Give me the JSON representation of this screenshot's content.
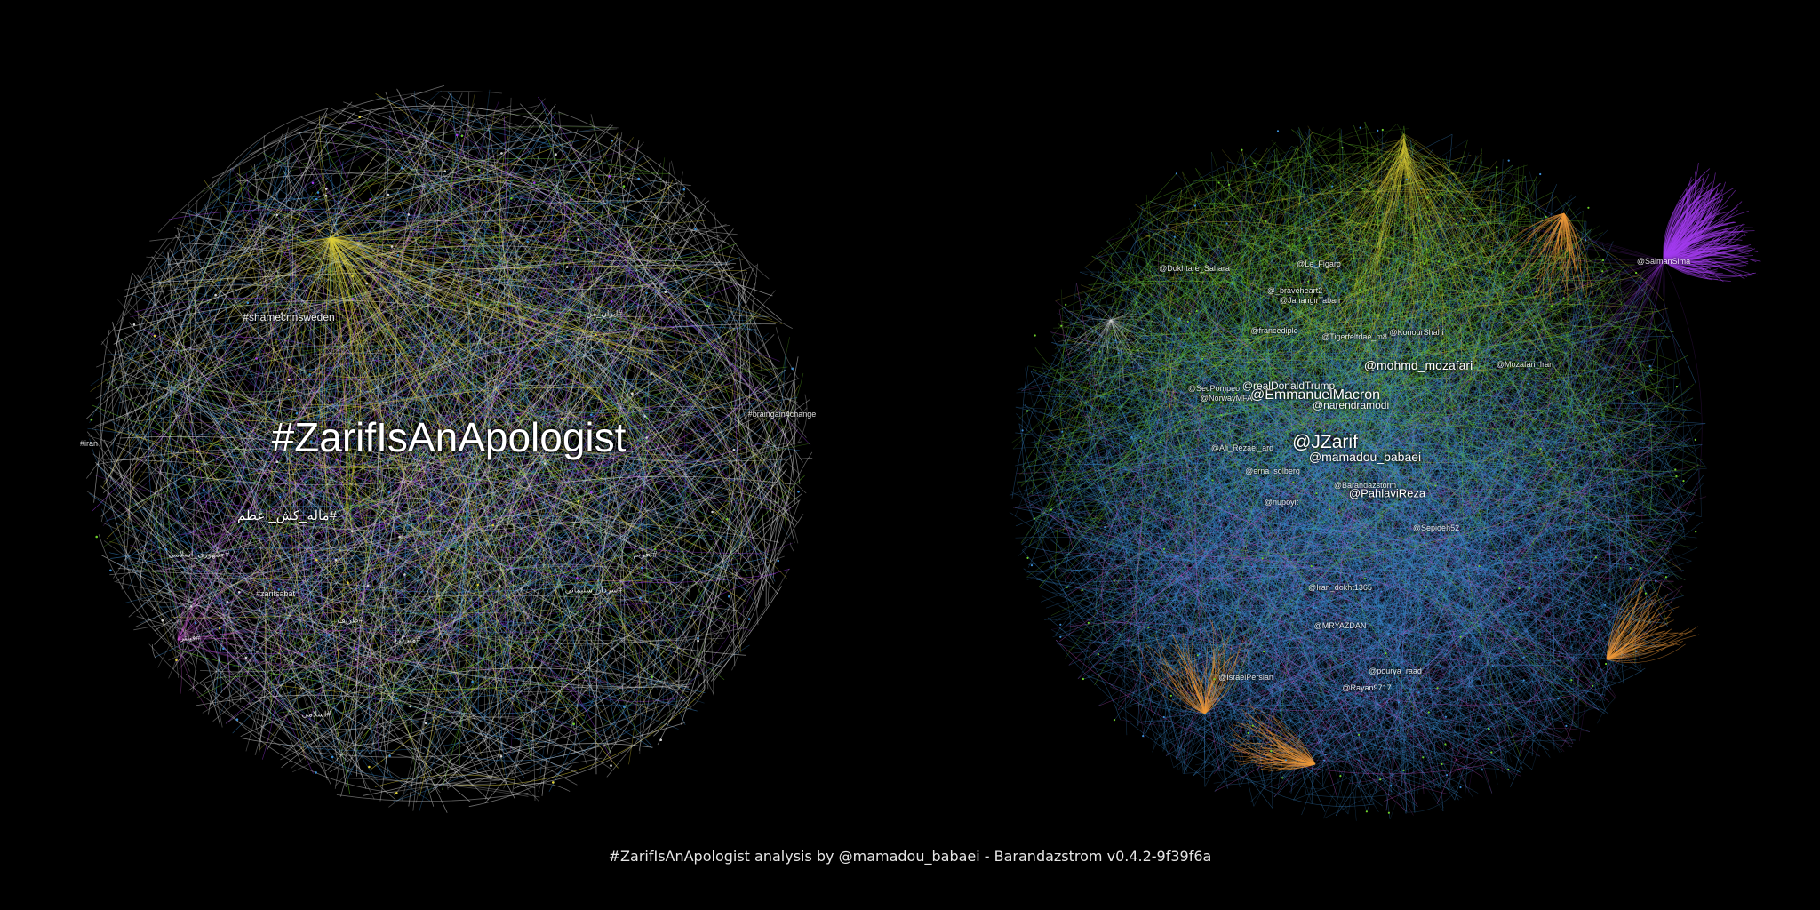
{
  "graphs": [
    {
      "id": "hashtag-graph",
      "labels": {
        "main": "#ZarifIsAnApologist",
        "l1": "#shamecnnsweden",
        "l2": "#ماله_کش_اعظم",
        "l3": "#jomhuriye_eslami",
        "l4": "#zarifsabat",
        "l5": "#ظریف",
        "l6": "#braingain4change",
        "l7": "#iran",
        "l8": "#جمهوری_اسلامی",
        "l9": "#فیلتر",
        "l10": "#میزگرد",
        "l11": "#ایران_من",
        "l12": "#سردار_سلیمانی",
        "l13": "#اسلامی",
        "l14": "#تحریم"
      }
    },
    {
      "id": "user-graph",
      "labels": {
        "zarif": "@JZarif",
        "macron": "@EmmanuelMacron",
        "mozafari": "@mohmd_mozafari",
        "babaei": "@mamadou_babaei",
        "pahlavi": "@PahlaviReza",
        "trump": "@realDonaldTrump",
        "modi": "@narendramodi",
        "salmansima": "@SalmanSima",
        "dokht": "@Iran_dokht1365",
        "mryazdan": "@MRYAZDAN",
        "figaro": "@Le_Figaro",
        "braveheart": "@_braveheart2",
        "francediplo": "@francediplo",
        "tigerfeltdae": "@Tigerfeltdae_m8",
        "pompeo": "@SecPompeo",
        "erna": "@erna_solberg",
        "rayan": "@Rayan9717",
        "israel": "@IsraelPersian",
        "pourya": "@pourya_raad",
        "barandaz": "@Barandazstorm",
        "konour": "@KonourShahi",
        "dokhtare": "@Dokhtare_Sahara",
        "norwaymfa": "@NorwayMFA",
        "nupoyit": "@nupoyit",
        "sepideh": "@Sepideh52",
        "mozafari_iran": "@Mozafari_Iran",
        "jahangir": "@JahangirTabari",
        "ali_rezaei": "@Ali_Rezaei_ard"
      }
    }
  ],
  "caption": "#ZarifIsAnApologist analysis by @mamadou_babaei - Barandazstrom v0.4.2-9f39f6a",
  "colors": {
    "background": "#000000",
    "edge_blue": "#3d8fd6",
    "edge_green": "#6fd12b",
    "edge_yellow": "#e0d23a",
    "edge_purple": "#a43cf0",
    "edge_orange": "#f09a3a",
    "edge_white": "#d8d8d8",
    "edge_pink": "#d05ad8"
  }
}
